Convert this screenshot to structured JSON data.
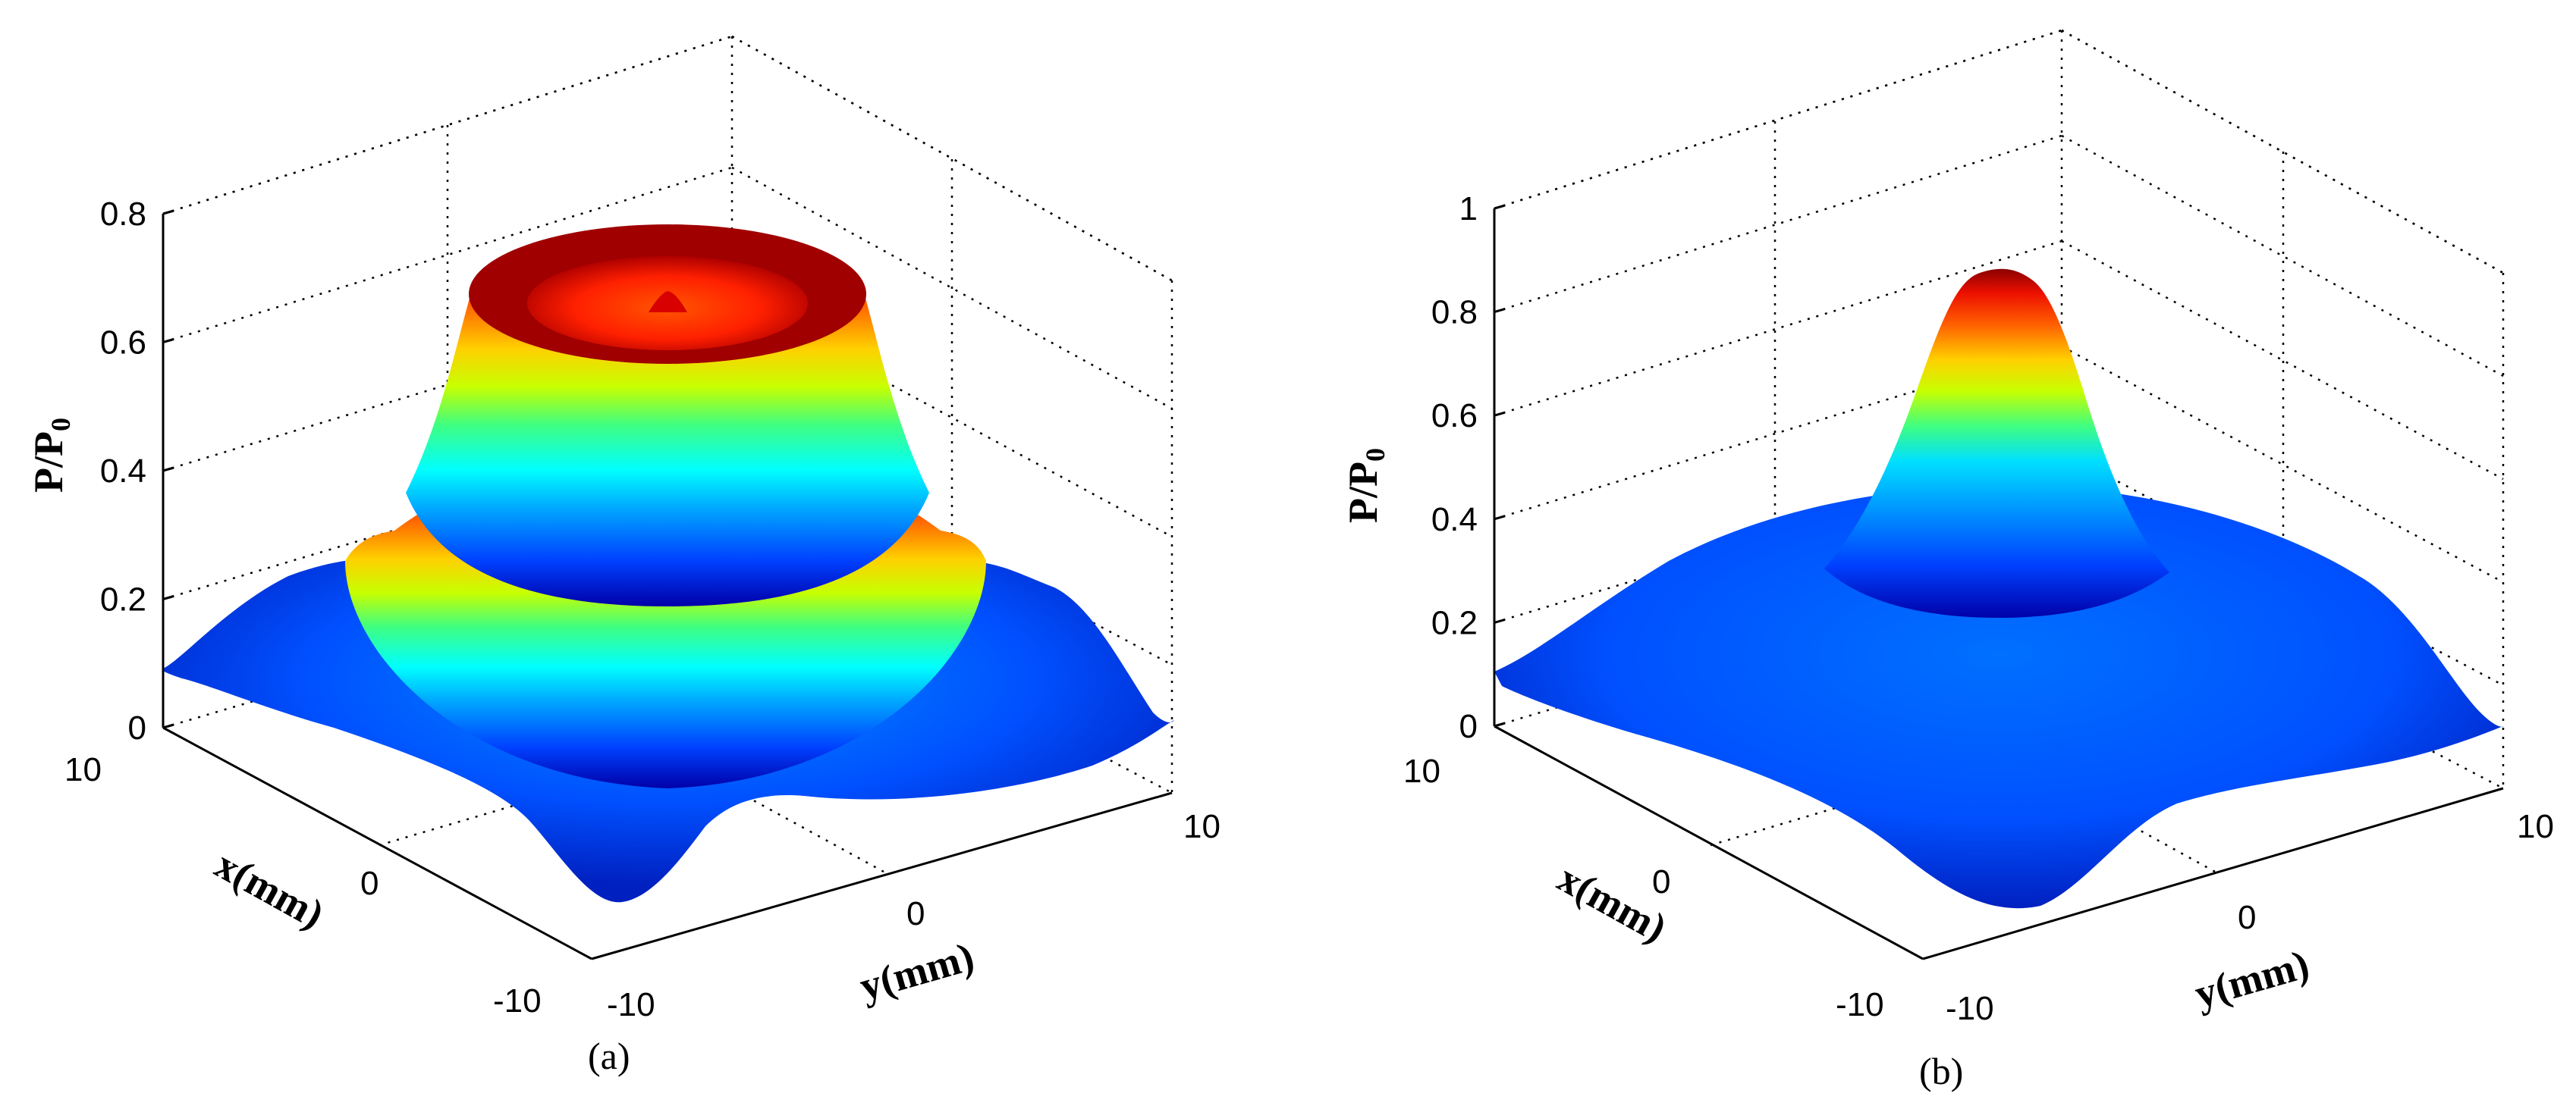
{
  "chart_data": [
    {
      "type": "surface",
      "panel_label": "(a)",
      "title": "",
      "xlabel": "x(mm)",
      "ylabel": "y(mm)",
      "zlabel_main": "P/P",
      "zlabel_sub": "0",
      "xlim": [
        -10,
        10
      ],
      "ylim": [
        -10,
        10
      ],
      "zlim": [
        0,
        0.8
      ],
      "x_ticks": [
        "10",
        "0",
        "-10"
      ],
      "y_ticks": [
        "-10",
        "0",
        "10"
      ],
      "z_ticks": [
        "0",
        "0.2",
        "0.4",
        "0.6",
        "0.8"
      ],
      "z_tick_values": [
        0,
        0.2,
        0.4,
        0.6,
        0.8
      ],
      "grid": true,
      "colormap": "jet",
      "surface_profile": {
        "description_units": "radius in mm vs P/P0",
        "r": [
          0,
          1,
          2,
          3,
          4,
          5,
          6,
          7,
          8,
          10,
          12,
          14
        ],
        "z": [
          0.58,
          0.67,
          0.7,
          0.66,
          0.55,
          0.4,
          0.24,
          0.13,
          0.08,
          0.05,
          0.07,
          0.04
        ]
      },
      "peak_value": 0.7
    },
    {
      "type": "surface",
      "panel_label": "(b)",
      "title": "",
      "xlabel": "x(mm)",
      "ylabel": "y(mm)",
      "zlabel_main": "P/P",
      "zlabel_sub": "0",
      "xlim": [
        -10,
        10
      ],
      "ylim": [
        -10,
        10
      ],
      "zlim": [
        0,
        1
      ],
      "x_ticks": [
        "10",
        "0",
        "-10"
      ],
      "y_ticks": [
        "-10",
        "0",
        "10"
      ],
      "z_ticks": [
        "0",
        "0.2",
        "0.4",
        "0.6",
        "0.8",
        "1"
      ],
      "z_tick_values": [
        0,
        0.2,
        0.4,
        0.6,
        0.8,
        1
      ],
      "grid": true,
      "colormap": "jet",
      "surface_profile": {
        "description_units": "radius in mm vs P/P0",
        "r": [
          0,
          1,
          2,
          3,
          4,
          5,
          6,
          8,
          10,
          12,
          14
        ],
        "z": [
          0.85,
          0.78,
          0.6,
          0.4,
          0.3,
          0.27,
          0.25,
          0.2,
          0.13,
          0.08,
          0.05
        ]
      },
      "peak_value": 0.85
    }
  ]
}
